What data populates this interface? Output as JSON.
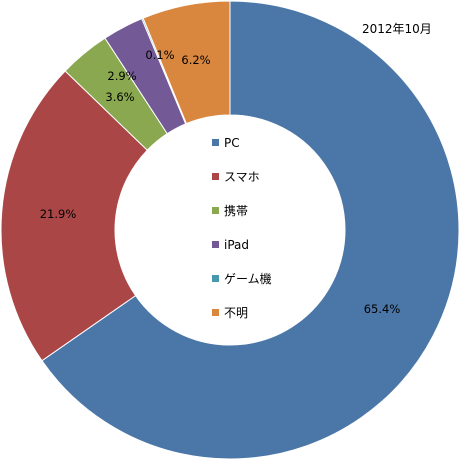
{
  "chart_data": {
    "type": "pie",
    "variant": "donut",
    "title": "2012年10月",
    "series": [
      {
        "name": "PC",
        "value": 65.4,
        "label": "65.4%",
        "color": "#4a76a8"
      },
      {
        "name": "スマホ",
        "value": 21.9,
        "label": "21.9%",
        "color": "#ab4646"
      },
      {
        "name": "携帯",
        "value": 3.6,
        "label": "3.6%",
        "color": "#89a84f"
      },
      {
        "name": "iPad",
        "value": 2.9,
        "label": "2.9%",
        "color": "#735a96"
      },
      {
        "name": "ゲーム機",
        "value": 0.1,
        "label": "0.1%",
        "color": "#4598ad"
      },
      {
        "name": "不明",
        "value": 6.2,
        "label": "6.2%",
        "color": "#d9873f"
      }
    ],
    "legend_position": "center"
  }
}
